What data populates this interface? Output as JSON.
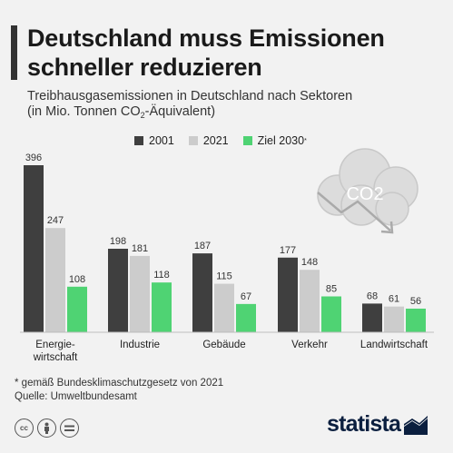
{
  "title": "Deutschland muss Emissionen schneller reduzieren",
  "subtitle_line1": "Treibhausgasemissionen in Deutschland nach Sektoren",
  "subtitle_line2_pre": "(in Mio. Tonnen CO",
  "subtitle_sub": "2",
  "subtitle_line2_post": "-Äquivalent)",
  "cloud_label": "CO2",
  "footnote_line1": "* gemäß Bundesklimaschutzgesetz von 2021",
  "footnote_line2": "Quelle: Umweltbundesamt",
  "brand": "statista",
  "license_icons": [
    "cc-icon",
    "by-icon",
    "nd-icon"
  ],
  "chart_data": {
    "type": "bar",
    "title": "Deutschland muss Emissionen schneller reduzieren",
    "subtitle": "Treibhausgasemissionen in Deutschland nach Sektoren (in Mio. Tonnen CO2-Äquivalent)",
    "categories": [
      "Energie-\nwirtschaft",
      "Industrie",
      "Gebäude",
      "Verkehr",
      "Landwirtschaft"
    ],
    "series": [
      {
        "name": "2001",
        "color": "#3f3f3f",
        "values": [
          396,
          198,
          187,
          177,
          68
        ]
      },
      {
        "name": "2021",
        "color": "#cccccc",
        "values": [
          247,
          181,
          115,
          148,
          61
        ]
      },
      {
        "name": "Ziel 2030",
        "legend_sup": "*",
        "color": "#4fd373",
        "values": [
          108,
          118,
          67,
          85,
          56
        ]
      }
    ],
    "ylim": [
      0,
      396
    ],
    "grid": false,
    "legend_position": "top"
  }
}
